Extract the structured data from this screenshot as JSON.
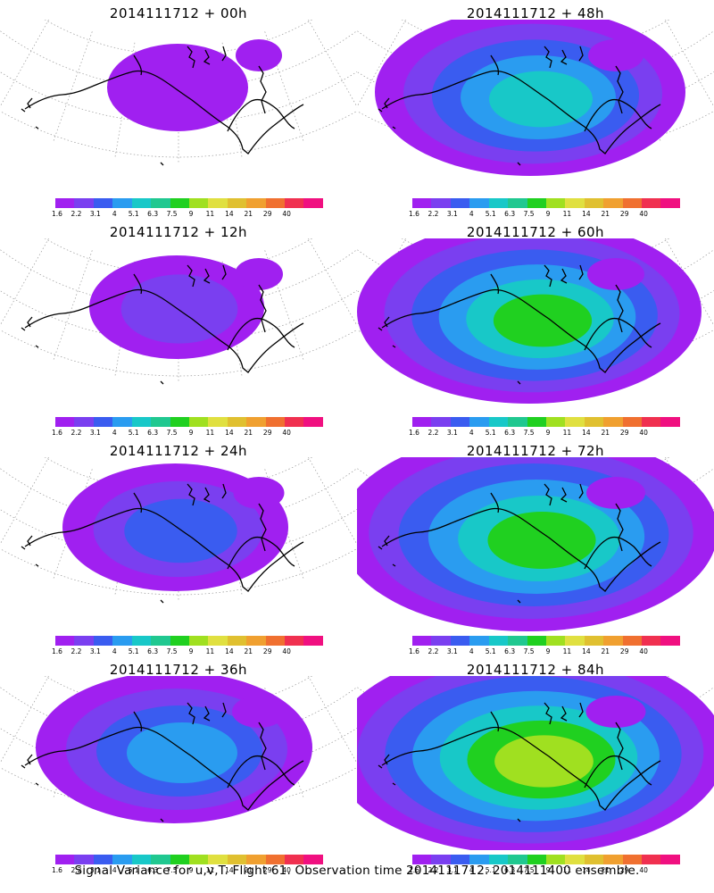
{
  "colorbar": {
    "colors": [
      "#a020f0",
      "#7a3ff0",
      "#3a5cf0",
      "#2a9cf0",
      "#18c8c8",
      "#20c890",
      "#20d020",
      "#a0e020",
      "#e0e040",
      "#e0c030",
      "#f0a030",
      "#f07030",
      "#f03050",
      "#f01080"
    ],
    "labels": [
      "1.6",
      "2.2",
      "3.1",
      "4",
      "5.1",
      "6.3",
      "7.5",
      "9",
      "11",
      "14",
      "21",
      "29",
      "40"
    ]
  },
  "panels": [
    {
      "title": "2014111712 + 00h",
      "level": 0.1
    },
    {
      "title": "2014111712 + 48h",
      "level": 0.6
    },
    {
      "title": "2014111712 + 12h",
      "level": 0.2
    },
    {
      "title": "2014111712 + 60h",
      "level": 0.7
    },
    {
      "title": "2014111712 + 24h",
      "level": 0.35
    },
    {
      "title": "2014111712 + 72h",
      "level": 0.8
    },
    {
      "title": "2014111712 + 36h",
      "level": 0.5
    },
    {
      "title": "2014111712 + 84h",
      "level": 0.85
    }
  ],
  "footer": "Signal Variance for u,v,T. Flight 61. Observation time 2014111712. 2014111400 ensemble."
}
